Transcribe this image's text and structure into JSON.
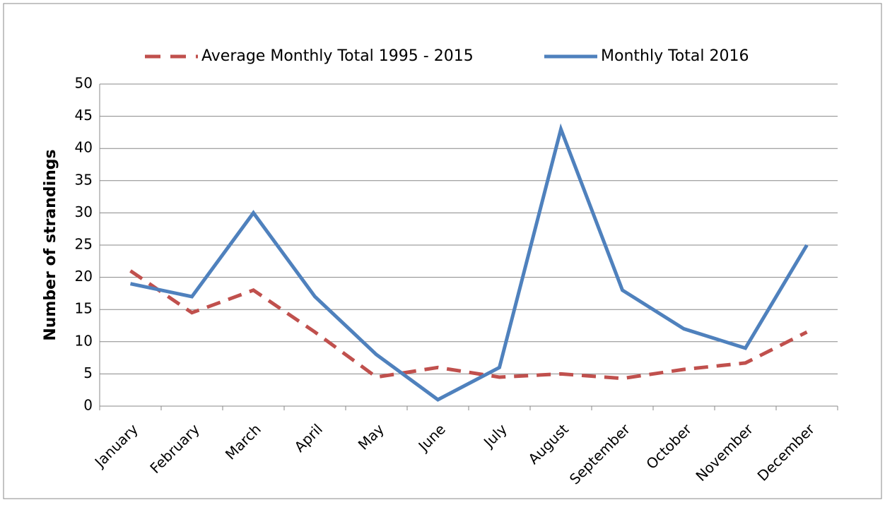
{
  "chart_data": {
    "type": "line",
    "categories": [
      "January",
      "February",
      "March",
      "April",
      "May",
      "June",
      "July",
      "August",
      "September",
      "October",
      "November",
      "December"
    ],
    "series": [
      {
        "name": "Average Monthly Total 1995 - 2015",
        "color": "#c0504d",
        "dashed": true,
        "values": [
          21,
          14.5,
          18,
          11.5,
          4.5,
          6,
          4.5,
          5,
          4.3,
          5.7,
          6.7,
          11.5
        ]
      },
      {
        "name": "Monthly Total 2016",
        "color": "#4f81bd",
        "dashed": false,
        "values": [
          19,
          17,
          30,
          17,
          8,
          1,
          6,
          43,
          18,
          12,
          9,
          25
        ]
      }
    ],
    "ylabel": "Number of strandings",
    "ylim": [
      0,
      50
    ],
    "yticks": [
      0,
      5,
      10,
      15,
      20,
      25,
      30,
      35,
      40,
      45,
      50
    ],
    "grid": true,
    "legend": "top"
  }
}
